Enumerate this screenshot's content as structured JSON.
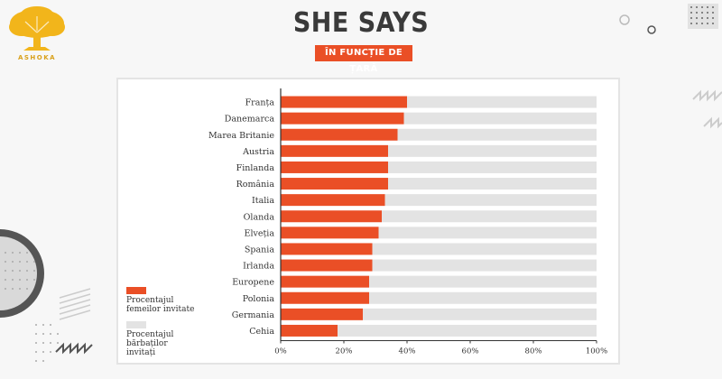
{
  "header": {
    "title": "SHE SAYS",
    "subtitle": "ÎN FUNCȚIE DE ȚARĂ"
  },
  "logo": {
    "text": "ASHOKA",
    "icon": "tree-icon",
    "color": "#f2b51b"
  },
  "colors": {
    "accent": "#ea4f26",
    "background_bar": "#e3e3e3"
  },
  "chart_data": {
    "type": "bar",
    "orientation": "horizontal",
    "stacked": "overlay",
    "title": "",
    "xlabel": "",
    "ylabel": "",
    "xlim": [
      0,
      100
    ],
    "x_ticks": [
      "0%",
      "20%",
      "40%",
      "60%",
      "80%",
      "100%"
    ],
    "categories": [
      "Franța",
      "Danemarca",
      "Marea Britanie",
      "Austria",
      "Finlanda",
      "România",
      "Italia",
      "Olanda",
      "Elveția",
      "Spania",
      "Irlanda",
      "Europene",
      "Polonia",
      "Germania",
      "Cehia"
    ],
    "series": [
      {
        "name": "Procentajul femeilor invitate",
        "color": "#ea4f26",
        "values": [
          40,
          39,
          37,
          34,
          34,
          34,
          33,
          32,
          31,
          29,
          29,
          28,
          28,
          26,
          18
        ]
      },
      {
        "name": "Procentajul bărbaților invitați",
        "color": "#e3e3e3",
        "values": [
          60,
          61,
          63,
          66,
          66,
          66,
          67,
          68,
          69,
          71,
          71,
          72,
          72,
          74,
          82
        ]
      }
    ],
    "legend_position": "bottom-left",
    "grid": false
  }
}
